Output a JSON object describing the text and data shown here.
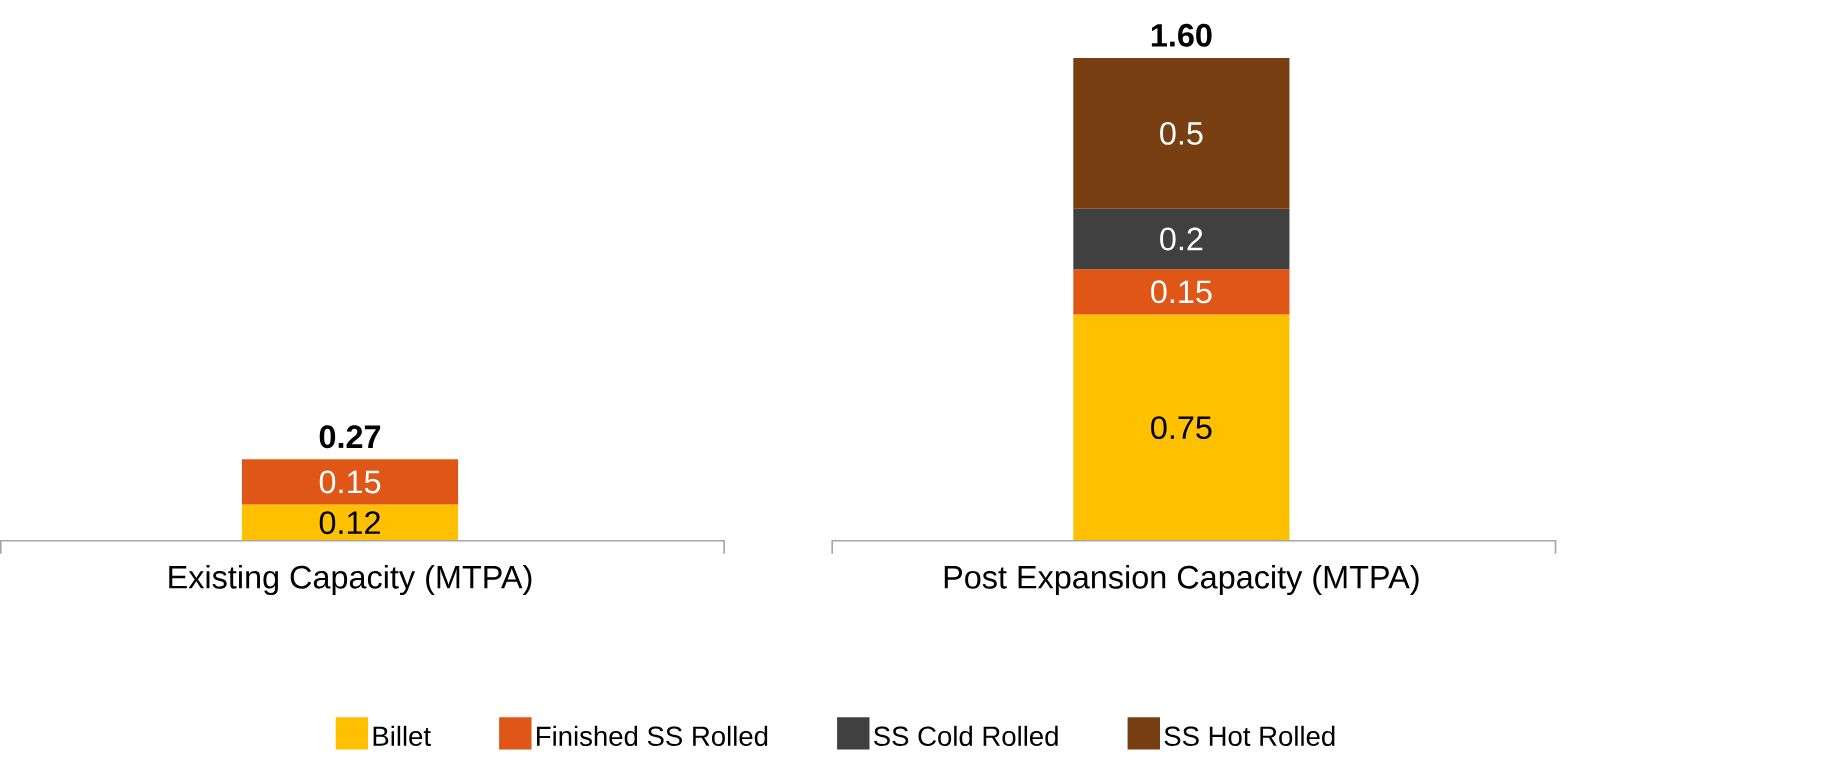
{
  "chart_data": {
    "type": "bar",
    "stacked": true,
    "data_labels": true,
    "legend": "bottom",
    "categories": [
      "Existing Capacity (MTPA)",
      "Post Expansion Capacity (MTPA)"
    ],
    "series": [
      {
        "name": "Billet",
        "color": "#ffc000",
        "values": [
          0.12,
          0.75
        ]
      },
      {
        "name": "Finished SS Rolled",
        "color": "#e05616",
        "values": [
          0.15,
          0.15
        ]
      },
      {
        "name": "SS Cold Rolled",
        "color": "#404040",
        "values": [
          null,
          0.2
        ]
      },
      {
        "name": "SS Hot Rolled",
        "color": "#783f12",
        "values": [
          null,
          0.5
        ]
      }
    ],
    "totals": [
      "0.27",
      "1.60"
    ]
  }
}
